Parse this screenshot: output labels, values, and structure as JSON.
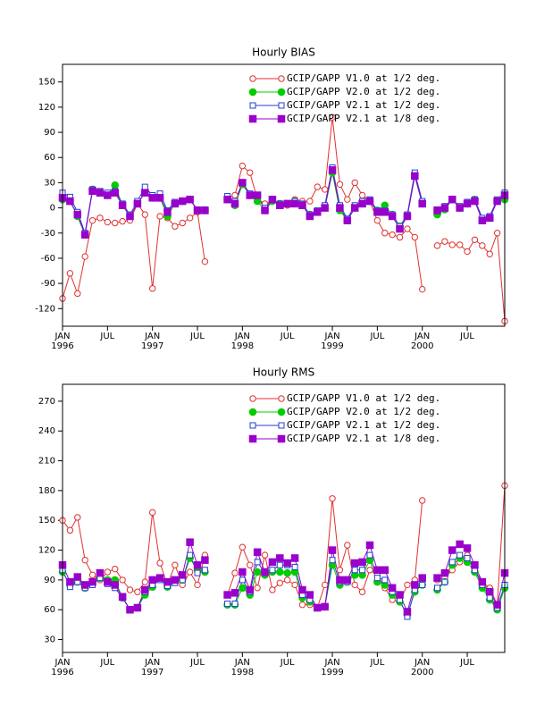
{
  "chart_data": [
    {
      "type": "line",
      "title": "Hourly BIAS",
      "x": [
        0,
        1,
        2,
        3,
        4,
        5,
        6,
        7,
        8,
        9,
        10,
        11,
        12,
        13,
        14,
        15,
        16,
        17,
        18,
        19,
        20,
        21,
        22,
        23,
        24,
        25,
        26,
        27,
        28,
        29,
        30,
        31,
        32,
        33,
        34,
        35,
        36,
        37,
        38,
        39,
        40,
        41,
        42,
        43,
        44,
        45,
        46,
        47,
        48,
        49,
        50,
        51,
        52,
        53,
        54,
        55,
        56,
        57,
        58,
        59
      ],
      "xlim": [
        0,
        59
      ],
      "xticks": [
        {
          "value": 0,
          "label": "JAN"
        },
        {
          "value": 6,
          "label": "JUL"
        },
        {
          "value": 12,
          "label": "JAN"
        },
        {
          "value": 18,
          "label": "JUL"
        },
        {
          "value": 24,
          "label": "JAN"
        },
        {
          "value": 30,
          "label": "JUL"
        },
        {
          "value": 36,
          "label": "JAN"
        },
        {
          "value": 42,
          "label": "JUL"
        },
        {
          "value": 48,
          "label": "JAN"
        },
        {
          "value": 54,
          "label": "JUL"
        }
      ],
      "year_labels": [
        {
          "value": 0,
          "label": "1996"
        },
        {
          "value": 12,
          "label": "1997"
        },
        {
          "value": 24,
          "label": "1998"
        },
        {
          "value": 36,
          "label": "1999"
        },
        {
          "value": 48,
          "label": "2000"
        }
      ],
      "ylim": [
        -141,
        171
      ],
      "yticks": [
        -120,
        -90,
        -60,
        -30,
        0,
        30,
        60,
        90,
        120,
        150
      ],
      "series": [
        {
          "name": "GCIP/GAPP V1.0 at 1/2 deg.",
          "color": "#e03030",
          "marker": "open-circle",
          "values": [
            -108,
            -78,
            -102,
            -58,
            -15,
            -12,
            -17,
            -18,
            -16,
            -15,
            5,
            -8,
            -96,
            -10,
            -12,
            -22,
            -18,
            -12,
            -5,
            -64,
            null,
            null,
            12,
            15,
            50,
            42,
            10,
            5,
            8,
            5,
            3,
            10,
            8,
            8,
            25,
            22,
            108,
            28,
            10,
            30,
            15,
            8,
            -15,
            -30,
            -32,
            -35,
            -25,
            -35,
            -97,
            null,
            -45,
            -40,
            -44,
            -44,
            -52,
            -38,
            -45,
            -55,
            -30,
            -135
          ]
        },
        {
          "name": "GCIP/GAPP V2.0 at 1/2 deg.",
          "color": "#00cc00",
          "marker": "filled-circle",
          "values": [
            10,
            8,
            -10,
            -32,
            22,
            18,
            15,
            27,
            3,
            -10,
            5,
            18,
            12,
            12,
            -10,
            5,
            8,
            10,
            -3,
            -3,
            null,
            null,
            10,
            3,
            28,
            15,
            8,
            -3,
            8,
            5,
            5,
            8,
            3,
            -8,
            -5,
            0,
            42,
            -3,
            -15,
            0,
            5,
            8,
            -3,
            3,
            -8,
            -22,
            -10,
            38,
            5,
            null,
            -8,
            -2,
            10,
            0,
            5,
            10,
            -15,
            -12,
            8,
            10
          ]
        },
        {
          "name": "GCIP/GAPP V2.1 at 1/2 deg.",
          "color": "#2040d0",
          "marker": "open-square",
          "values": [
            18,
            13,
            -5,
            -30,
            22,
            20,
            18,
            20,
            5,
            -8,
            8,
            25,
            15,
            17,
            -3,
            7,
            8,
            10,
            -2,
            -2,
            null,
            null,
            14,
            8,
            30,
            17,
            15,
            0,
            10,
            5,
            5,
            8,
            5,
            -8,
            -3,
            3,
            48,
            3,
            -13,
            3,
            8,
            10,
            -3,
            -3,
            -8,
            -22,
            -8,
            42,
            8,
            null,
            -2,
            2,
            10,
            2,
            7,
            10,
            -12,
            -10,
            10,
            18
          ]
        },
        {
          "name": "GCIP/GAPP V2.1 at 1/8 deg.",
          "color": "#9900cc",
          "marker": "filled-square",
          "values": [
            12,
            8,
            -8,
            -32,
            20,
            18,
            15,
            18,
            3,
            -10,
            5,
            18,
            12,
            12,
            -5,
            5,
            8,
            10,
            -3,
            -3,
            null,
            null,
            10,
            5,
            30,
            15,
            15,
            -3,
            10,
            3,
            5,
            5,
            3,
            -10,
            -5,
            0,
            45,
            0,
            -15,
            0,
            5,
            8,
            -5,
            -5,
            -10,
            -25,
            -10,
            38,
            5,
            null,
            -3,
            0,
            10,
            0,
            5,
            8,
            -15,
            -12,
            8,
            15
          ]
        }
      ]
    },
    {
      "type": "line",
      "title": "Hourly RMS",
      "x": [
        0,
        1,
        2,
        3,
        4,
        5,
        6,
        7,
        8,
        9,
        10,
        11,
        12,
        13,
        14,
        15,
        16,
        17,
        18,
        19,
        20,
        21,
        22,
        23,
        24,
        25,
        26,
        27,
        28,
        29,
        30,
        31,
        32,
        33,
        34,
        35,
        36,
        37,
        38,
        39,
        40,
        41,
        42,
        43,
        44,
        45,
        46,
        47,
        48,
        49,
        50,
        51,
        52,
        53,
        54,
        55,
        56,
        57,
        58,
        59
      ],
      "xlim": [
        0,
        59
      ],
      "xticks": [
        {
          "value": 0,
          "label": "JAN"
        },
        {
          "value": 6,
          "label": "JUL"
        },
        {
          "value": 12,
          "label": "JAN"
        },
        {
          "value": 18,
          "label": "JUL"
        },
        {
          "value": 24,
          "label": "JAN"
        },
        {
          "value": 30,
          "label": "JUL"
        },
        {
          "value": 36,
          "label": "JAN"
        },
        {
          "value": 42,
          "label": "JUL"
        },
        {
          "value": 48,
          "label": "JAN"
        },
        {
          "value": 54,
          "label": "JUL"
        }
      ],
      "year_labels": [
        {
          "value": 0,
          "label": "1996"
        },
        {
          "value": 12,
          "label": "1997"
        },
        {
          "value": 24,
          "label": "1998"
        },
        {
          "value": 36,
          "label": "1999"
        },
        {
          "value": 48,
          "label": "2000"
        }
      ],
      "ylim": [
        17,
        287
      ],
      "yticks": [
        30,
        60,
        90,
        120,
        150,
        180,
        210,
        240,
        270
      ],
      "series": [
        {
          "name": "GCIP/GAPP V1.0 at 1/2 deg.",
          "color": "#e03030",
          "marker": "open-circle",
          "values": [
            150,
            140,
            153,
            110,
            95,
            90,
            98,
            101,
            90,
            80,
            78,
            88,
            158,
            107,
            85,
            105,
            85,
            98,
            85,
            115,
            null,
            null,
            75,
            97,
            123,
            105,
            82,
            115,
            80,
            87,
            90,
            85,
            65,
            65,
            62,
            85,
            172,
            100,
            125,
            85,
            78,
            100,
            95,
            82,
            70,
            68,
            85,
            90,
            170,
            null,
            90,
            92,
            100,
            108,
            115,
            100,
            88,
            82,
            65,
            185
          ]
        },
        {
          "name": "GCIP/GAPP V2.0 at 1/2 deg.",
          "color": "#00cc00",
          "marker": "filled-circle",
          "values": [
            98,
            85,
            88,
            82,
            87,
            92,
            90,
            90,
            72,
            60,
            62,
            75,
            83,
            92,
            83,
            88,
            90,
            112,
            100,
            98,
            null,
            null,
            65,
            65,
            82,
            75,
            98,
            95,
            98,
            98,
            97,
            98,
            72,
            68,
            62,
            63,
            105,
            85,
            88,
            95,
            95,
            110,
            88,
            85,
            75,
            68,
            55,
            78,
            85,
            null,
            80,
            88,
            105,
            112,
            108,
            98,
            82,
            70,
            60,
            82
          ]
        },
        {
          "name": "GCIP/GAPP V2.1 at 1/2 deg.",
          "color": "#2040d0",
          "marker": "open-square",
          "values": [
            100,
            83,
            88,
            82,
            85,
            92,
            86,
            82,
            72,
            60,
            62,
            78,
            85,
            90,
            84,
            87,
            90,
            115,
            97,
            100,
            null,
            null,
            66,
            66,
            90,
            78,
            108,
            97,
            100,
            105,
            105,
            103,
            75,
            70,
            62,
            63,
            110,
            88,
            88,
            100,
            100,
            115,
            92,
            90,
            78,
            70,
            53,
            80,
            85,
            null,
            82,
            88,
            108,
            115,
            112,
            100,
            85,
            72,
            62,
            85
          ]
        },
        {
          "name": "GCIP/GAPP V2.1 at 1/8 deg.",
          "color": "#9900cc",
          "marker": "filled-square",
          "values": [
            105,
            88,
            93,
            85,
            88,
            97,
            88,
            85,
            73,
            60,
            62,
            80,
            90,
            92,
            88,
            90,
            95,
            128,
            105,
            110,
            null,
            null,
            75,
            77,
            98,
            80,
            118,
            98,
            108,
            112,
            107,
            112,
            80,
            75,
            62,
            63,
            120,
            90,
            90,
            107,
            108,
            125,
            100,
            100,
            82,
            75,
            58,
            85,
            92,
            null,
            92,
            97,
            120,
            126,
            122,
            105,
            88,
            78,
            65,
            97
          ]
        }
      ]
    }
  ]
}
